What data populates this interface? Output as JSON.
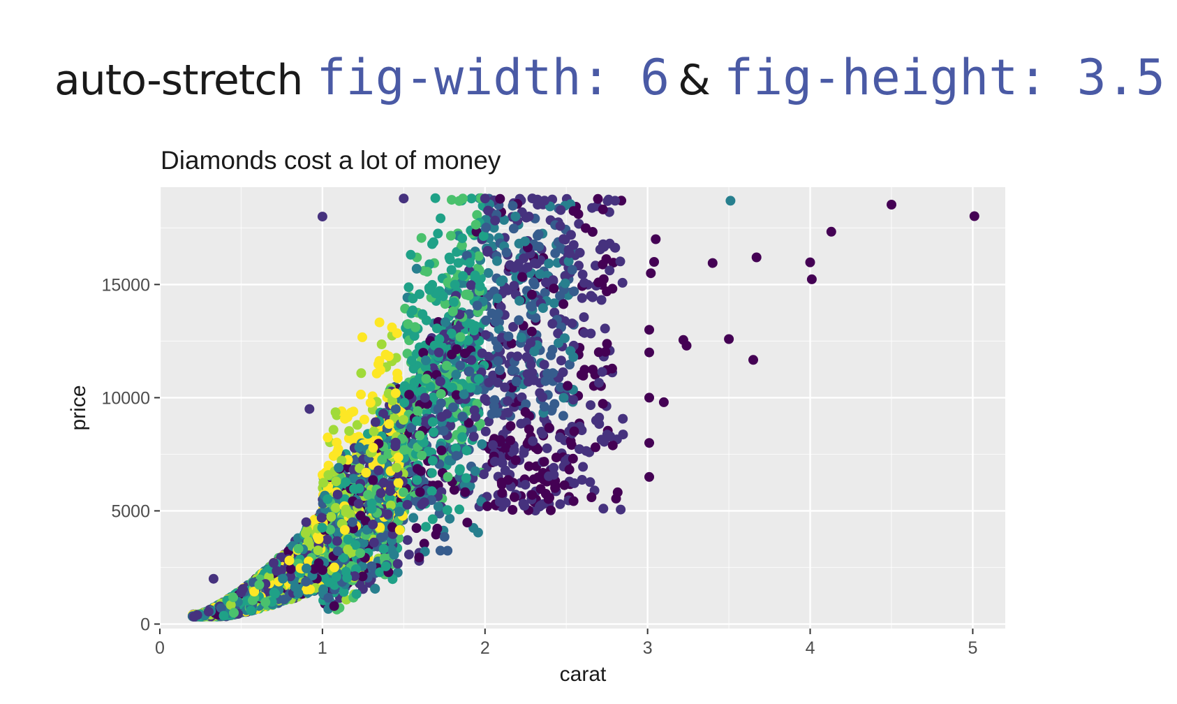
{
  "heading": {
    "prefix": "auto-stretch",
    "code1": "fig-width: 6",
    "joiner": "&",
    "code2": "fig-height: 3.5"
  },
  "colors": {
    "panel_background": "#ebebeb",
    "grid": "#ffffff",
    "code_text": "#4a5aa5",
    "viridis": [
      "#440154",
      "#46327e",
      "#365c8d",
      "#277f8e",
      "#1fa187",
      "#4ac16d",
      "#a0da39",
      "#fde725"
    ]
  },
  "chart_data": {
    "type": "scatter",
    "title": "Diamonds cost a lot of money",
    "xlabel": "carat",
    "ylabel": "price",
    "xlim": [
      0,
      5.2
    ],
    "ylim": [
      0,
      19000
    ],
    "xticks": [
      0,
      1,
      2,
      3,
      4,
      5
    ],
    "yticks": [
      0,
      5000,
      10000,
      15000
    ],
    "grid": true,
    "legend": "none",
    "color_scale": "viridis",
    "sample_points": [
      {
        "x": 0.21,
        "y": 326
      },
      {
        "x": 0.23,
        "y": 400
      },
      {
        "x": 0.3,
        "y": 550
      },
      {
        "x": 0.33,
        "y": 2000
      },
      {
        "x": 0.5,
        "y": 1400
      },
      {
        "x": 0.7,
        "y": 2700
      },
      {
        "x": 0.9,
        "y": 4500
      },
      {
        "x": 0.92,
        "y": 9500
      },
      {
        "x": 1.0,
        "y": 18000
      },
      {
        "x": 1.5,
        "y": 18800
      },
      {
        "x": 2.0,
        "y": 18800
      },
      {
        "x": 2.8,
        "y": 18700
      },
      {
        "x": 3.01,
        "y": 6500
      },
      {
        "x": 3.01,
        "y": 8000
      },
      {
        "x": 3.01,
        "y": 10000
      },
      {
        "x": 3.01,
        "y": 12000
      },
      {
        "x": 3.01,
        "y": 13000
      },
      {
        "x": 3.02,
        "y": 15500
      },
      {
        "x": 3.04,
        "y": 16000
      },
      {
        "x": 3.05,
        "y": 17000
      },
      {
        "x": 3.1,
        "y": 9800
      },
      {
        "x": 3.22,
        "y": 12550
      },
      {
        "x": 3.24,
        "y": 12300
      },
      {
        "x": 3.4,
        "y": 15950
      },
      {
        "x": 3.5,
        "y": 12590
      },
      {
        "x": 3.51,
        "y": 18700
      },
      {
        "x": 3.65,
        "y": 11670
      },
      {
        "x": 3.67,
        "y": 16200
      },
      {
        "x": 4.0,
        "y": 15980
      },
      {
        "x": 4.01,
        "y": 15230
      },
      {
        "x": 4.13,
        "y": 17330
      },
      {
        "x": 4.5,
        "y": 18530
      },
      {
        "x": 5.01,
        "y": 18020
      }
    ]
  }
}
